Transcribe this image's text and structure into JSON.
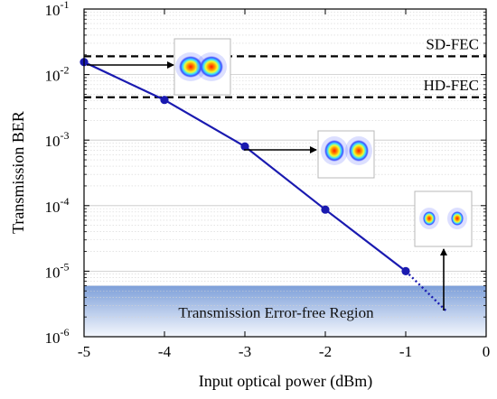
{
  "chart_data": {
    "type": "line",
    "title": "",
    "xlabel": "Input optical power (dBm)",
    "ylabel": "Transmission BER",
    "xlim": [
      -5,
      0
    ],
    "x_ticks": [
      "-5",
      "-4",
      "-3",
      "-2",
      "-1",
      "0"
    ],
    "y_scale": "log",
    "ylim": [
      1e-06,
      0.1
    ],
    "y_tick_base": "10",
    "y_tick_exponents": [
      "-1",
      "-2",
      "-3",
      "-4",
      "-5",
      "-6"
    ],
    "grid": true,
    "series": [
      {
        "name": "",
        "color": "#1a1ab0",
        "x": [
          -5,
          -4,
          -3,
          -2,
          -1
        ],
        "y": [
          0.0155,
          0.0041,
          0.0008,
          8.7e-05,
          1e-05
        ]
      }
    ],
    "extrapolation": {
      "x": [
        -1,
        -0.5
      ],
      "y": [
        1e-05,
        2.5e-06
      ],
      "style": "dotted"
    },
    "thresholds": [
      {
        "label": "SD-FEC",
        "y": 0.019
      },
      {
        "label": "HD-FEC",
        "y": 0.0045
      }
    ],
    "regions": [
      {
        "label": "Transmission Error-free Region",
        "y_from": 1e-06,
        "y_to": 6e-06
      }
    ],
    "insets": [
      {
        "name": "constellation-inset-1",
        "anchor_x": -5,
        "anchor_y": 0.0155,
        "dots": 2
      },
      {
        "name": "constellation-inset-2",
        "anchor_x": -3,
        "anchor_y": 0.0008,
        "dots": 2
      },
      {
        "name": "constellation-inset-3",
        "anchor_x": -0.5,
        "anchor_y": 2.5e-06,
        "dots": 2
      }
    ]
  }
}
